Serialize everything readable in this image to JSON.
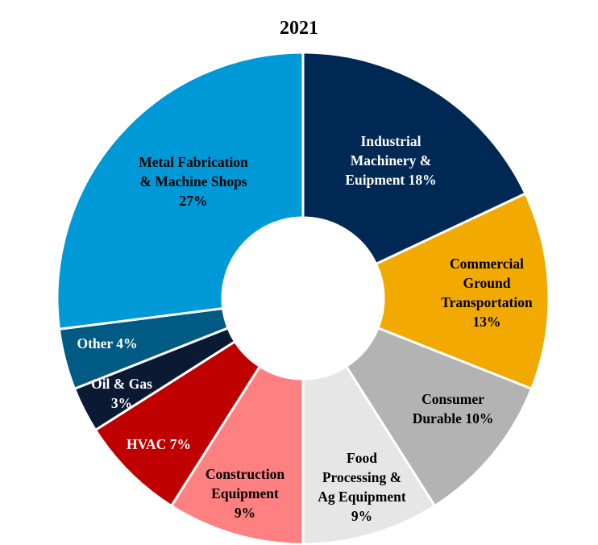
{
  "chart_data": {
    "type": "pie",
    "variant": "donut",
    "title": "2021",
    "start_angle_deg": 0,
    "direction": "clockwise",
    "legend": "none",
    "slices": [
      {
        "label_lines": [
          "Industrial",
          "Machinery &",
          "Euipment 18%"
        ],
        "value": 18,
        "color": "#002855",
        "label_color": "#ffffff"
      },
      {
        "label_lines": [
          "Commercial",
          "Ground",
          "Transportation",
          "13%"
        ],
        "value": 13,
        "color": "#f2a900",
        "label_color": "#000000"
      },
      {
        "label_lines": [
          "Consumer",
          "Durable 10%"
        ],
        "value": 10,
        "color": "#b3b3b3",
        "label_color": "#000000"
      },
      {
        "label_lines": [
          "Food",
          "Processing &",
          "Ag Equipment",
          "9%"
        ],
        "value": 9,
        "color": "#e6e6e6",
        "label_color": "#000000"
      },
      {
        "label_lines": [
          "Construction",
          "Equipment",
          "9%"
        ],
        "value": 9,
        "color": "#ff8080",
        "label_color": "#000000"
      },
      {
        "label_lines": [
          "HVAC 7%"
        ],
        "value": 7,
        "color": "#c00000",
        "label_color": "#ffffff"
      },
      {
        "label_lines": [
          "Oil & Gas",
          "3%"
        ],
        "value": 3,
        "color": "#0b1a33",
        "label_color": "#ffffff"
      },
      {
        "label_lines": [
          "Other 4%"
        ],
        "value": 4,
        "color": "#005a84",
        "label_color": "#ffffff"
      },
      {
        "label_lines": [
          "Metal Fabrication",
          "& Machine Shops",
          "27%"
        ],
        "value": 27,
        "color": "#0099d8",
        "label_color": "#000000"
      }
    ]
  }
}
